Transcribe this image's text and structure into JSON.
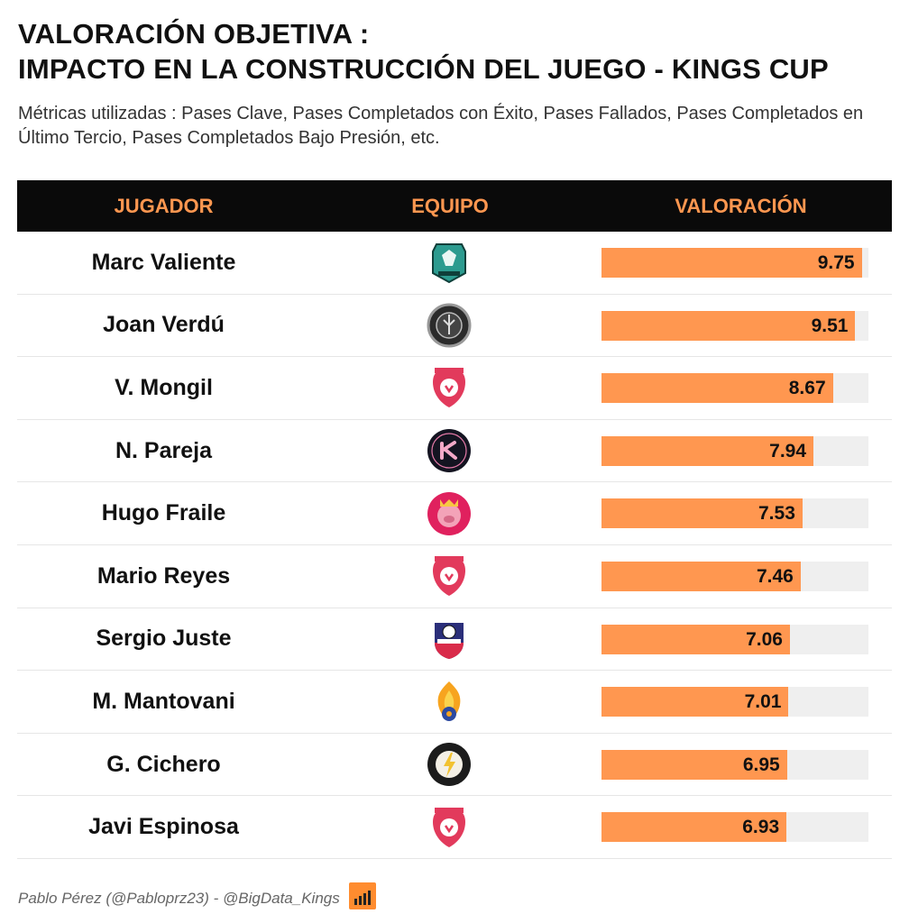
{
  "title_line1": "VALORACIÓN OBJETIVA :",
  "title_line2": "IMPACTO EN LA CONSTRUCCIÓN DEL JUEGO - KINGS CUP",
  "subtitle": "Métricas utilizadas : Pases Clave, Pases Completados con Éxito, Pases Fallados, Pases Completados en Último Tercio, Pases Completados Bajo Presión, etc.",
  "headers": {
    "player": "JUGADOR",
    "team": "EQUIPO",
    "rating": "VALORACIÓN"
  },
  "footer": "Pablo Pérez (@Pabloprz23) - @BigData_Kings",
  "colors": {
    "bar": "#ff9750",
    "track": "#efefef",
    "header_bg": "#0a0a0a",
    "header_text": "#ff9750"
  },
  "chart_data": {
    "type": "bar",
    "orientation": "horizontal",
    "categories": [
      "Marc Valiente",
      "Joan Verdú",
      "V. Mongil",
      "N. Pareja",
      "Hugo Fraile",
      "Mario Reyes",
      "Sergio Juste",
      "M. Mantovani",
      "G. Cichero",
      "Javi Espinosa"
    ],
    "values": [
      9.75,
      9.51,
      8.67,
      7.94,
      7.53,
      7.46,
      7.06,
      7.01,
      6.95,
      6.93
    ],
    "value_labels": [
      "9.75",
      "9.51",
      "8.67",
      "7.94",
      "7.53",
      "7.46",
      "7.06",
      "7.01",
      "6.95",
      "6.93"
    ],
    "team_icons": [
      "el-barrio-logo",
      "ultimate-mostoles-logo",
      "aniquiladores-logo",
      "kunisports-logo",
      "porcinos-logo",
      "aniquiladores-logo",
      "jijantes-logo",
      "saiyans-logo",
      "rayo-de-barcelona-logo",
      "aniquiladores-logo"
    ],
    "xlim": [
      0,
      10
    ]
  }
}
